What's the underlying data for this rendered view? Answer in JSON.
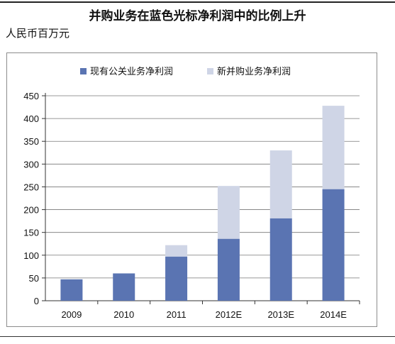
{
  "title": "并购业务在蓝色光标净利润中的比例上升",
  "unit_label": "人民币百万元",
  "colors": {
    "existing": "#5a74b2",
    "new": "#cfd5e6",
    "axis": "#333333",
    "grid": "#777777"
  },
  "chart_data": {
    "type": "bar",
    "stacked": true,
    "categories": [
      "2009",
      "2010",
      "2011",
      "2012E",
      "2013E",
      "2014E"
    ],
    "series": [
      {
        "name": "现有公关业务净利润",
        "values": [
          47,
          60,
          97,
          136,
          181,
          245
        ]
      },
      {
        "name": "新并购业务净利润",
        "values": [
          0,
          0,
          25,
          116,
          149,
          183
        ]
      }
    ],
    "ylim": [
      0,
      450
    ],
    "yticks": [
      0,
      50,
      100,
      150,
      200,
      250,
      300,
      350,
      400,
      450
    ],
    "grid": true,
    "legend": "top-center",
    "title": "",
    "xlabel": "",
    "ylabel": ""
  }
}
